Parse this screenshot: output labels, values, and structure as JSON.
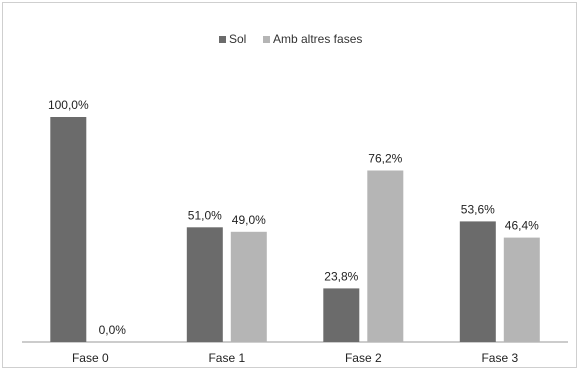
{
  "chart_data": {
    "type": "bar",
    "categories": [
      "Fase 0",
      "Fase 1",
      "Fase 2",
      "Fase 3"
    ],
    "series": [
      {
        "name": "Sol",
        "values": [
          100.0,
          51.0,
          23.8,
          53.6
        ],
        "labels": [
          "100,0%",
          "51,0%",
          "23,8%",
          "53,6%"
        ],
        "color": "#6b6b6b"
      },
      {
        "name": "Amb altres fases",
        "values": [
          0.0,
          49.0,
          76.2,
          46.4
        ],
        "labels": [
          "0,0%",
          "49,0%",
          "76,2%",
          "46,4%"
        ],
        "color": "#b5b5b5"
      }
    ],
    "ylim": [
      0,
      100
    ],
    "grid": false,
    "legend_position": "top-center",
    "title": "",
    "xlabel": "",
    "ylabel": ""
  }
}
